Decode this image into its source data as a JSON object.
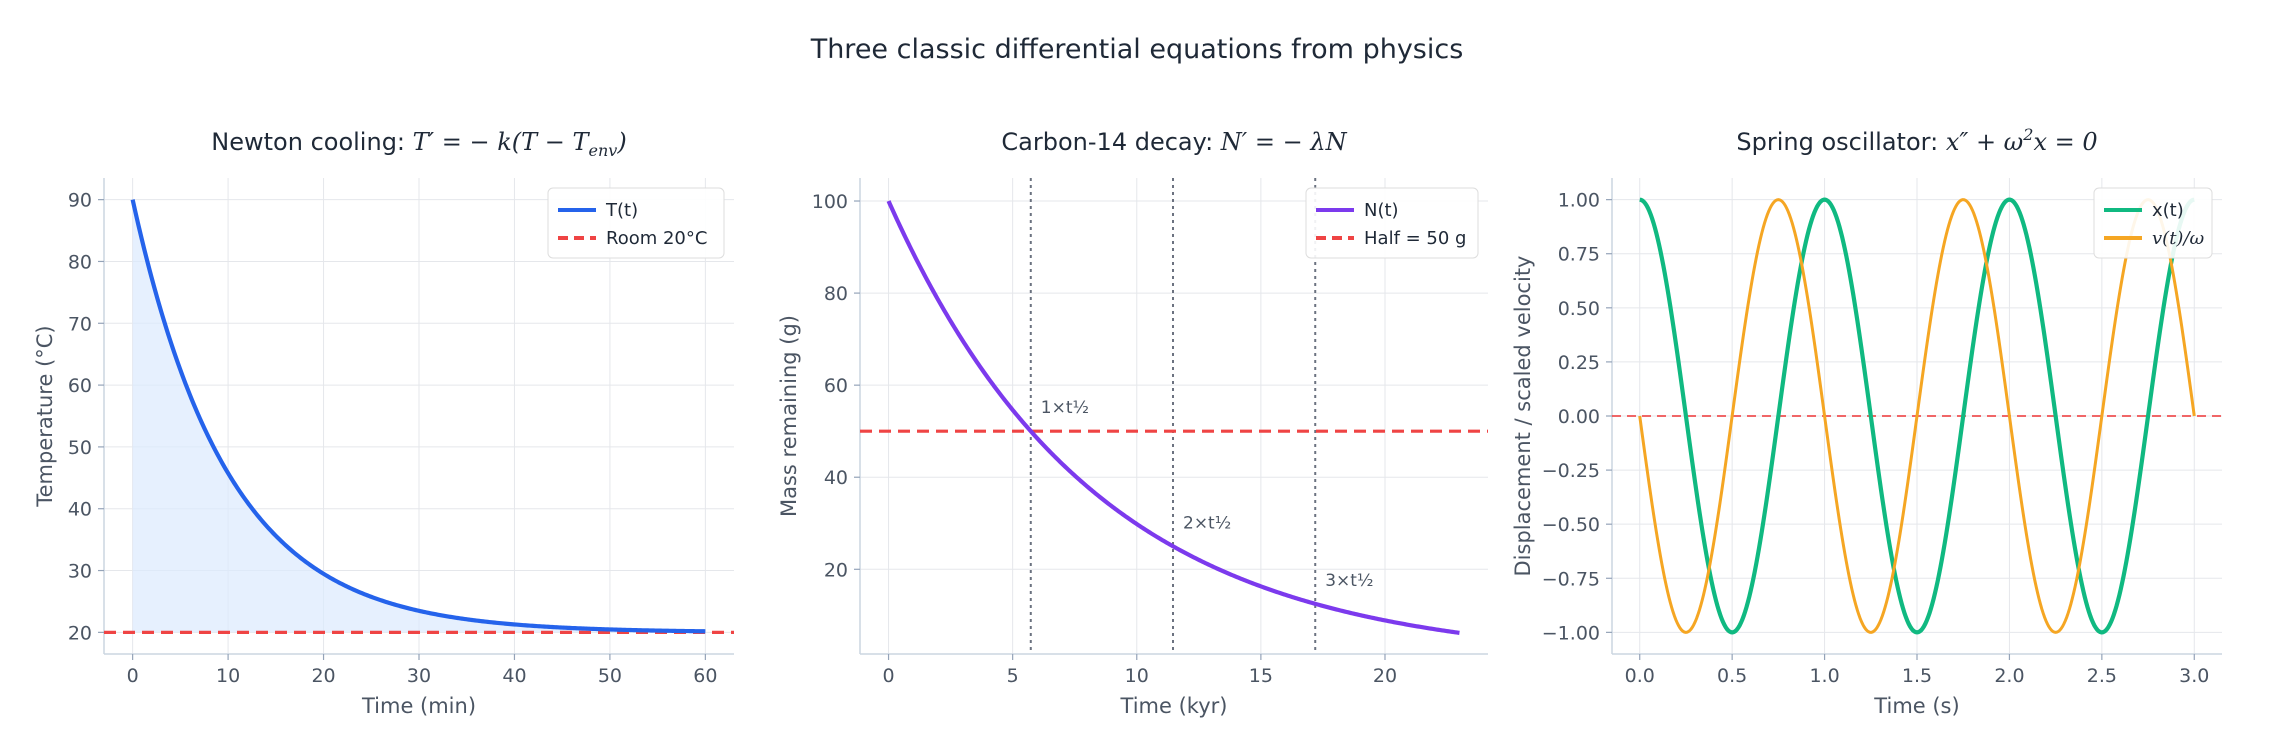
{
  "figure": {
    "title": "Three classic differential equations from physics"
  },
  "chart_data": [
    {
      "type": "line",
      "title_text": "Newton cooling: ",
      "title_math": "T′ = − k(T − T",
      "title_math_sub": "env",
      "title_math_end": ")",
      "xlabel": "Time (min)",
      "ylabel": "Temperature (°C)",
      "xlim": [
        -3,
        63
      ],
      "ylim": [
        16.5,
        93.5
      ],
      "xticks": [
        0,
        10,
        20,
        30,
        40,
        50,
        60
      ],
      "yticks": [
        20,
        30,
        40,
        50,
        60,
        70,
        80,
        90
      ],
      "grid": true,
      "legend_position": "top-right",
      "model": {
        "T0": 90,
        "T_env": 20,
        "k": 0.1,
        "t_min": 0,
        "t_max": 60
      },
      "series": [
        {
          "name": "T(t)",
          "color": "#2563eb",
          "style": "solid",
          "fill": "#dbeafe"
        },
        {
          "name": "Room 20°C",
          "color": "#ef4444",
          "style": "dashed",
          "y": 20
        }
      ]
    },
    {
      "type": "line",
      "title_text": "Carbon-14 decay: ",
      "title_math": "N′ = − λN",
      "xlabel": "Time (kyr)",
      "ylabel": "Mass remaining (g)",
      "xlim": [
        -1.15,
        24.15
      ],
      "ylim": [
        1.6,
        105
      ],
      "xticks": [
        0,
        5,
        10,
        15,
        20
      ],
      "yticks": [
        20,
        40,
        60,
        80,
        100
      ],
      "grid": true,
      "legend_position": "top-right",
      "model": {
        "N0": 100,
        "half_life": 5.73,
        "t_min": 0,
        "t_max": 23
      },
      "series": [
        {
          "name": "N(t)",
          "color": "#7c3aed",
          "style": "solid"
        },
        {
          "name": "Half = 50 g",
          "color": "#ef4444",
          "style": "dashed",
          "y": 50
        }
      ],
      "vlines": {
        "x": [
          5.73,
          11.46,
          17.19
        ],
        "color": "#6b7280"
      },
      "annotations": [
        {
          "text": "1×t½",
          "x": 5.73,
          "y": 50
        },
        {
          "text": "2×t½",
          "x": 11.46,
          "y": 25
        },
        {
          "text": "3×t½",
          "x": 17.19,
          "y": 12.5
        }
      ]
    },
    {
      "type": "line",
      "title_text": "Spring oscillator: ",
      "title_math": "x″ + ω",
      "title_math_sup": "2",
      "title_math_end": "x = 0",
      "xlabel": "Time (s)",
      "ylabel": "Displacement / scaled velocity",
      "xlim": [
        -0.15,
        3.15
      ],
      "ylim": [
        -1.1,
        1.1
      ],
      "xticks": [
        0.0,
        0.5,
        1.0,
        1.5,
        2.0,
        2.5,
        3.0
      ],
      "xtick_labels": [
        "0.0",
        "0.5",
        "1.0",
        "1.5",
        "2.0",
        "2.5",
        "3.0"
      ],
      "yticks": [
        -1.0,
        -0.75,
        -0.5,
        -0.25,
        0.0,
        0.25,
        0.5,
        0.75,
        1.0
      ],
      "ytick_labels": [
        "−1.00",
        "−0.75",
        "−0.50",
        "−0.25",
        "0.00",
        "0.25",
        "0.50",
        "0.75",
        "1.00"
      ],
      "grid": true,
      "legend_position": "top-right",
      "model": {
        "omega_over_2pi": 1,
        "t_min": 0,
        "t_max": 3
      },
      "series": [
        {
          "name": "x(t)",
          "color": "#10b981",
          "style": "solid"
        },
        {
          "name": "v(t)/ω",
          "color": "#f5a623",
          "style": "solid",
          "math": true
        },
        {
          "name": "",
          "color": "#ef4444",
          "style": "dashed",
          "y": 0
        }
      ]
    }
  ]
}
